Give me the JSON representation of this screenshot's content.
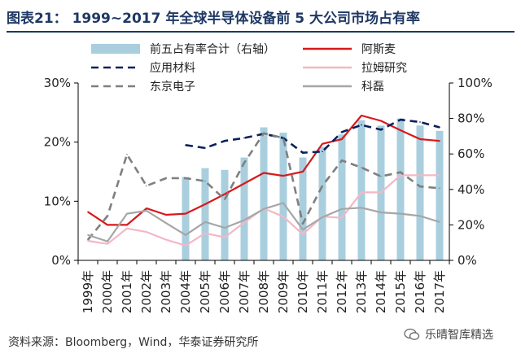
{
  "title": "图表21：  1999~2017 年全球半导体设备前 5 大公司市场占有率",
  "source": "资料来源：Bloomberg，Wind，华泰证券研究所",
  "watermark": "乐晴智库精选",
  "chart_data": {
    "type": "bar+line",
    "categories": [
      "1999年",
      "2000年",
      "2001年",
      "2002年",
      "2003年",
      "2004年",
      "2005年",
      "2006年",
      "2007年",
      "2008年",
      "2009年",
      "2010年",
      "2011年",
      "2012年",
      "2013年",
      "2014年",
      "2015年",
      "2016年",
      "2017年"
    ],
    "bar_series": {
      "name": "前五占有率合计（右轴）",
      "color": "#a9cfdf",
      "axis": "right",
      "values": [
        null,
        null,
        null,
        null,
        null,
        47,
        52,
        51,
        58,
        75,
        72,
        58,
        64,
        71,
        79,
        76,
        80,
        76,
        73
      ]
    },
    "line_series": [
      {
        "name": "阿斯麦",
        "color": "#d7191c",
        "style": "solid",
        "values": [
          8.2,
          6,
          6,
          8.8,
          7.7,
          7.9,
          9.5,
          11.2,
          13,
          14.8,
          14.3,
          15,
          19.7,
          20.5,
          24.5,
          23.6,
          22,
          20.5,
          20.2
        ]
      },
      {
        "name": "应用材料",
        "color": "#0a1f5c",
        "style": "dashed",
        "values": [
          null,
          null,
          null,
          null,
          null,
          19.5,
          19,
          20.2,
          20.7,
          21.4,
          20.7,
          18.2,
          18.4,
          21.7,
          22.9,
          22.1,
          23.8,
          23.4,
          22.5
        ]
      },
      {
        "name": "拉姆研究",
        "color": "#f2b8c6",
        "style": "solid",
        "values": [
          3.3,
          2.8,
          5.4,
          4.8,
          3.5,
          2.5,
          4.6,
          3.9,
          6.4,
          8.8,
          7.4,
          4.4,
          7.4,
          7.2,
          11.5,
          11.5,
          14.4,
          14.4,
          14.4
        ]
      },
      {
        "name": "东京电子",
        "color": "#7f7f7f",
        "style": "dashed",
        "values": [
          3.5,
          7.5,
          17.9,
          12.6,
          13.9,
          13.9,
          13.4,
          10.3,
          16.5,
          21.5,
          20.7,
          6.2,
          12.6,
          16.9,
          15.7,
          14.2,
          14.9,
          12.5,
          12.2
        ]
      },
      {
        "name": "科磊",
        "color": "#a6a6a6",
        "style": "solid",
        "values": [
          4.3,
          3.2,
          7.9,
          8.4,
          6.3,
          4.3,
          6.5,
          5.5,
          6.8,
          8.7,
          9.7,
          5.2,
          7.3,
          8.7,
          8.9,
          8.1,
          7.9,
          7.5,
          6.5
        ]
      }
    ],
    "legend": [
      {
        "label": "前五占有率合计（右轴）",
        "kind": "bar",
        "color": "#a9cfdf"
      },
      {
        "label": "阿斯麦",
        "kind": "solid",
        "color": "#d7191c"
      },
      {
        "label": "应用材料",
        "kind": "dashed",
        "color": "#0a1f5c"
      },
      {
        "label": "拉姆研究",
        "kind": "solid",
        "color": "#f2b8c6"
      },
      {
        "label": "东京电子",
        "kind": "dashed",
        "color": "#7f7f7f"
      },
      {
        "label": "科磊",
        "kind": "solid",
        "color": "#a6a6a6"
      }
    ],
    "left_axis": {
      "ylim": [
        0,
        30
      ],
      "ticks": [
        0,
        10,
        20,
        30
      ],
      "tick_labels": [
        "0%",
        "10%",
        "20%",
        "30%"
      ]
    },
    "right_axis": {
      "ylim": [
        0,
        100
      ],
      "ticks": [
        0,
        20,
        40,
        60,
        80,
        100
      ],
      "tick_labels": [
        "0%",
        "20%",
        "40%",
        "60%",
        "80%",
        "100%"
      ]
    },
    "legend_placement": "top",
    "grid": false
  }
}
